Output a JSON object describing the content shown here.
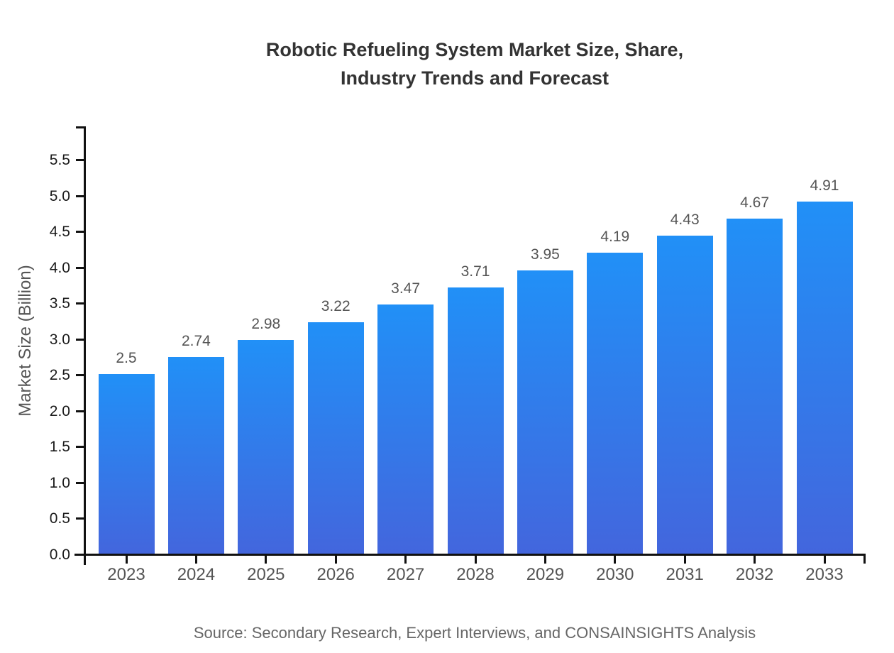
{
  "chart": {
    "title": "Robotic Refueling System Market Size, Share,\nIndustry Trends and Forecast",
    "ylabel": "Market Size (Billion)",
    "source": "Source: Secondary Research, Expert Interviews, and CONSAINSIGHTS Analysis"
  },
  "chart_data": {
    "type": "bar",
    "title": "Robotic Refueling System Market Size, Share, Industry Trends and Forecast",
    "xlabel": "",
    "ylabel": "Market Size (Billion)",
    "categories": [
      "2023",
      "2024",
      "2025",
      "2026",
      "2027",
      "2028",
      "2029",
      "2030",
      "2031",
      "2032",
      "2033"
    ],
    "values": [
      2.5,
      2.74,
      2.98,
      3.22,
      3.47,
      3.71,
      3.95,
      4.19,
      4.43,
      4.67,
      4.91
    ],
    "value_labels": [
      "2.5",
      "2.74",
      "2.98",
      "3.22",
      "3.47",
      "3.71",
      "3.95",
      "4.19",
      "4.43",
      "4.67",
      "4.91"
    ],
    "ylim": [
      0,
      5.5
    ],
    "y_tick_step": 0.5,
    "y_tick_labels": [
      "0.0",
      "0.5",
      "1.0",
      "1.5",
      "2.0",
      "2.5",
      "3.0",
      "3.5",
      "4.0",
      "4.5",
      "5.0",
      "5.5"
    ],
    "grid": false,
    "legend": "none",
    "bar_gradient_top": "#2190f7",
    "bar_gradient_bottom": "#4366dd",
    "axis_color": "#111111",
    "label_color": "#555555",
    "source": "Source: Secondary Research, Expert Interviews, and CONSAINSIGHTS Analysis"
  }
}
